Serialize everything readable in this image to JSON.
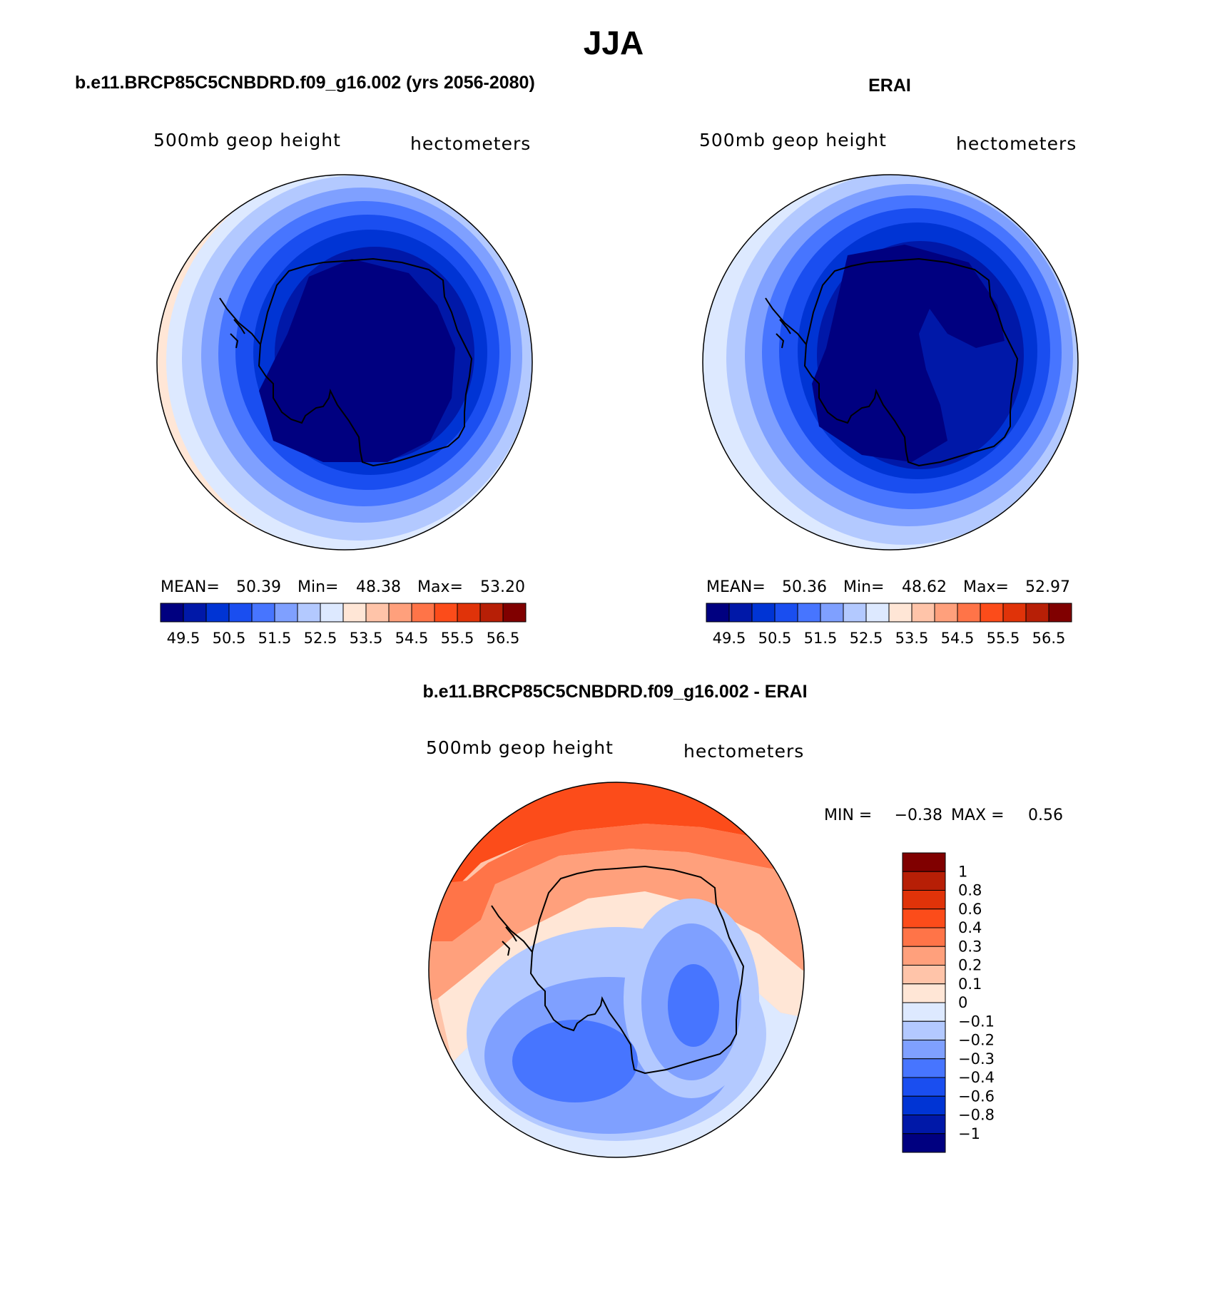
{
  "page": {
    "season": "JJA"
  },
  "panels": [
    {
      "id": "model",
      "case_title": "b.e11.BRCP85C5CNBDRD.f09_g16.002 (yrs 2056-2080)",
      "variable": "500mb geop height",
      "units": "hectometers",
      "stats": {
        "mean_label": "MEAN=",
        "mean": "50.39",
        "min_label": "Min=",
        "min": "48.38",
        "max_label": "Max=",
        "max": "53.20"
      },
      "colorbar_labels": [
        "49.5",
        "50.5",
        "51.5",
        "52.5",
        "53.5",
        "54.5",
        "55.5",
        "56.5"
      ]
    },
    {
      "id": "obs",
      "case_title": "ERAI",
      "variable": "500mb geop height",
      "units": "hectometers",
      "stats": {
        "mean_label": "MEAN=",
        "mean": "50.36",
        "min_label": "Min=",
        "min": "48.62",
        "max_label": "Max=",
        "max": "52.97"
      },
      "colorbar_labels": [
        "49.5",
        "50.5",
        "51.5",
        "52.5",
        "53.5",
        "54.5",
        "55.5",
        "56.5"
      ]
    }
  ],
  "diff": {
    "title": "b.e11.BRCP85C5CNBDRD.f09_g16.002 - ERAI",
    "variable": "500mb geop height",
    "units": "hectometers",
    "min_label": "MIN =",
    "min": "−0.38",
    "max_label": "MAX =",
    "max": "0.56",
    "colorbar_labels": [
      "1",
      "0.8",
      "0.6",
      "0.4",
      "0.3",
      "0.2",
      "0.1",
      "0",
      "−0.1",
      "−0.2",
      "−0.3",
      "−0.4",
      "−0.6",
      "−0.8",
      "−1"
    ]
  },
  "colors": {
    "abs_scale": [
      "#000080",
      "#0018a8",
      "#0034d4",
      "#1a4ef0",
      "#4775ff",
      "#7fa0ff",
      "#b3c9ff",
      "#dde9ff",
      "#ffe6d6",
      "#ffc4a9",
      "#ffa07c",
      "#ff7448",
      "#fc4c1a",
      "#e03309",
      "#b71f06",
      "#800000"
    ],
    "diff_scale": [
      "#800000",
      "#b71f06",
      "#e03309",
      "#fc4c1a",
      "#ff7448",
      "#ffa07c",
      "#ffc4a9",
      "#ffe6d6",
      "#dde9ff",
      "#b3c9ff",
      "#7fa0ff",
      "#4775ff",
      "#1a4ef0",
      "#0034d4",
      "#0018a8",
      "#000080"
    ],
    "coast": "#000000"
  }
}
